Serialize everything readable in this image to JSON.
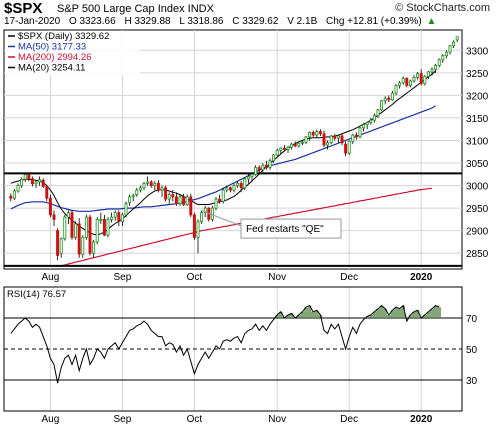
{
  "header": {
    "symbol": "$SPX",
    "name": "S&P 500 Large Cap Index INDX",
    "source": "© StockCharts.com",
    "date": "17-Jan-2020",
    "open": "O 3323.66",
    "high": "H 3329.88",
    "low": "L 3318.86",
    "close": "C 3329.62",
    "volume": "V 2.1B",
    "change": "Chg +12.81 (+0.39%)",
    "change_arrow": "▲"
  },
  "legend": [
    {
      "label": "$SPX (Daily) 3329.62",
      "color": "#000000"
    },
    {
      "label": "MA(50) 3177.33",
      "color": "#1a2fa0"
    },
    {
      "label": "MA(200) 2994.26",
      "color": "#cc1133"
    },
    {
      "label": "MA(20) 3254.11",
      "color": "#000000"
    }
  ],
  "annotation": "Fed restarts \"QE\"",
  "rsi_label": "RSI(14) 76.57",
  "chart_data": [
    {
      "type": "candlestick",
      "title": "$SPX (Daily)",
      "ylim": [
        2815,
        3345
      ],
      "yticks": [
        2850,
        2900,
        2950,
        3000,
        3050,
        3100,
        3150,
        3200,
        3250,
        3300
      ],
      "xticks": [
        {
          "label": "Aug",
          "i": 11
        },
        {
          "label": "Sep",
          "i": 31
        },
        {
          "label": "Oct",
          "i": 51
        },
        {
          "label": "Nov",
          "i": 74
        },
        {
          "label": "Dec",
          "i": 94
        },
        {
          "label": "2020",
          "i": 114
        }
      ],
      "hlines": [
        3027,
        2822
      ],
      "candles": [
        [
          2976,
          2983,
          2965,
          2972
        ],
        [
          2972,
          2992,
          2968,
          2988
        ],
        [
          2988,
          3005,
          2984,
          3000
        ],
        [
          3000,
          3018,
          2995,
          3014
        ],
        [
          3014,
          3028,
          3008,
          3024
        ],
        [
          3024,
          3027,
          3010,
          3015
        ],
        [
          3015,
          3020,
          2998,
          3004
        ],
        [
          3004,
          3012,
          2995,
          3008
        ],
        [
          3008,
          3020,
          3000,
          3013
        ],
        [
          3012,
          3016,
          2995,
          2998
        ],
        [
          2998,
          3000,
          2965,
          2972
        ],
        [
          2972,
          2980,
          2930,
          2935
        ],
        [
          2935,
          2945,
          2910,
          2925
        ],
        [
          2900,
          2905,
          2835,
          2845
        ],
        [
          2850,
          2885,
          2840,
          2882
        ],
        [
          2882,
          2935,
          2878,
          2930
        ],
        [
          2930,
          2945,
          2915,
          2940
        ],
        [
          2940,
          2945,
          2880,
          2885
        ],
        [
          2885,
          2920,
          2880,
          2915
        ],
        [
          2915,
          2928,
          2840,
          2848
        ],
        [
          2848,
          2890,
          2840,
          2885
        ],
        [
          2885,
          2935,
          2880,
          2930
        ],
        [
          2930,
          2935,
          2845,
          2850
        ],
        [
          2850,
          2880,
          2840,
          2875
        ],
        [
          2875,
          2930,
          2870,
          2925
        ],
        [
          2925,
          2940,
          2915,
          2925
        ],
        [
          2925,
          2935,
          2888,
          2890
        ],
        [
          2890,
          2930,
          2885,
          2925
        ],
        [
          2925,
          2940,
          2918,
          2930
        ],
        [
          2930,
          2945,
          2922,
          2940
        ],
        [
          2940,
          2945,
          2910,
          2920
        ],
        [
          2920,
          2940,
          2910,
          2935
        ],
        [
          2935,
          2965,
          2930,
          2960
        ],
        [
          2962,
          2980,
          2955,
          2975
        ],
        [
          2975,
          2982,
          2965,
          2978
        ],
        [
          2980,
          2995,
          2975,
          2990
        ],
        [
          2990,
          3000,
          2985,
          2995
        ],
        [
          2995,
          3008,
          2990,
          3005
        ],
        [
          3005,
          3020,
          3000,
          3008
        ],
        [
          3008,
          3012,
          2995,
          3000
        ],
        [
          3000,
          3010,
          2990,
          3005
        ],
        [
          3005,
          3012,
          2985,
          2990
        ],
        [
          2990,
          3000,
          2975,
          2995
        ],
        [
          2995,
          3000,
          2965,
          2970
        ],
        [
          2970,
          2985,
          2960,
          2980
        ],
        [
          2980,
          2990,
          2965,
          2975
        ],
        [
          2975,
          2985,
          2955,
          2960
        ],
        [
          2960,
          2980,
          2955,
          2975
        ],
        [
          2975,
          2982,
          2955,
          2958
        ],
        [
          2958,
          2980,
          2955,
          2975
        ],
        [
          2975,
          2982,
          2930,
          2935
        ],
        [
          2935,
          2940,
          2880,
          2885
        ],
        [
          2885,
          2925,
          2850,
          2920
        ],
        [
          2920,
          2945,
          2915,
          2940
        ],
        [
          2940,
          2955,
          2930,
          2950
        ],
        [
          2950,
          2952,
          2920,
          2925
        ],
        [
          2925,
          2955,
          2920,
          2950
        ],
        [
          2950,
          2975,
          2945,
          2970
        ],
        [
          2970,
          2980,
          2960,
          2965
        ],
        [
          2965,
          2995,
          2960,
          2990
        ],
        [
          2990,
          3000,
          2985,
          2995
        ],
        [
          2995,
          2998,
          2985,
          2990
        ],
        [
          2990,
          3005,
          2985,
          3000
        ],
        [
          3000,
          3010,
          2995,
          3005
        ],
        [
          3005,
          3010,
          2985,
          2995
        ],
        [
          2995,
          3018,
          2990,
          3015
        ],
        [
          3015,
          3025,
          3005,
          3020
        ],
        [
          3020,
          3028,
          3010,
          3025
        ],
        [
          3025,
          3045,
          3022,
          3040
        ],
        [
          3040,
          3045,
          3025,
          3035
        ],
        [
          3035,
          3050,
          3030,
          3045
        ],
        [
          3045,
          3055,
          3035,
          3040
        ],
        [
          3040,
          3060,
          3035,
          3055
        ],
        [
          3055,
          3070,
          3050,
          3068
        ],
        [
          3068,
          3082,
          3065,
          3078
        ],
        [
          3078,
          3085,
          3070,
          3083
        ],
        [
          3083,
          3090,
          3075,
          3080
        ],
        [
          3080,
          3088,
          3072,
          3085
        ],
        [
          3085,
          3095,
          3080,
          3092
        ],
        [
          3092,
          3098,
          3085,
          3088
        ],
        [
          3088,
          3096,
          3084,
          3094
        ],
        [
          3094,
          3100,
          3090,
          3096
        ],
        [
          3096,
          3110,
          3092,
          3108
        ],
        [
          3108,
          3120,
          3100,
          3118
        ],
        [
          3118,
          3122,
          3108,
          3112
        ],
        [
          3112,
          3124,
          3106,
          3120
        ],
        [
          3120,
          3125,
          3110,
          3115
        ],
        [
          3115,
          3122,
          3085,
          3090
        ],
        [
          3090,
          3100,
          3080,
          3095
        ],
        [
          3095,
          3112,
          3092,
          3110
        ],
        [
          3110,
          3115,
          3100,
          3105
        ],
        [
          3105,
          3112,
          3095,
          3110
        ],
        [
          3110,
          3115,
          3090,
          3095
        ],
        [
          3092,
          3098,
          3065,
          3072
        ],
        [
          3072,
          3100,
          3068,
          3098
        ],
        [
          3098,
          3115,
          3092,
          3112
        ],
        [
          3112,
          3118,
          3102,
          3108
        ],
        [
          3108,
          3130,
          3105,
          3128
        ],
        [
          3128,
          3138,
          3120,
          3135
        ],
        [
          3135,
          3142,
          3125,
          3140
        ],
        [
          3140,
          3150,
          3135,
          3145
        ],
        [
          3145,
          3160,
          3140,
          3155
        ],
        [
          3155,
          3170,
          3150,
          3168
        ],
        [
          3168,
          3190,
          3165,
          3188
        ],
        [
          3188,
          3198,
          3180,
          3194
        ],
        [
          3194,
          3200,
          3185,
          3190
        ],
        [
          3190,
          3210,
          3188,
          3205
        ],
        [
          3205,
          3225,
          3200,
          3222
        ],
        [
          3222,
          3232,
          3215,
          3228
        ],
        [
          3228,
          3242,
          3224,
          3238
        ],
        [
          3238,
          3240,
          3218,
          3222
        ],
        [
          3222,
          3235,
          3218,
          3232
        ],
        [
          3232,
          3245,
          3228,
          3240
        ],
        [
          3240,
          3252,
          3235,
          3248
        ],
        [
          3248,
          3258,
          3222,
          3226
        ],
        [
          3226,
          3245,
          3222,
          3242
        ],
        [
          3242,
          3255,
          3236,
          3252
        ],
        [
          3252,
          3262,
          3244,
          3258
        ],
        [
          3258,
          3270,
          3250,
          3266
        ],
        [
          3266,
          3282,
          3262,
          3279
        ],
        [
          3279,
          3292,
          3272,
          3288
        ],
        [
          3288,
          3300,
          3282,
          3296
        ],
        [
          3296,
          3312,
          3290,
          3310
        ],
        [
          3310,
          3322,
          3305,
          3318
        ],
        [
          3323,
          3330,
          3318,
          3330
        ]
      ],
      "ma20": [
        3005,
        3008,
        3010,
        3012,
        3014,
        3014,
        3013,
        3012,
        3010,
        3007,
        3000,
        2990,
        2978,
        2962,
        2948,
        2938,
        2930,
        2923,
        2917,
        2910,
        2905,
        2900,
        2895,
        2892,
        2891,
        2893,
        2897,
        2903,
        2910,
        2916,
        2921,
        2926,
        2933,
        2941,
        2948,
        2955,
        2962,
        2970,
        2977,
        2983,
        2988,
        2990,
        2991,
        2990,
        2988,
        2985,
        2983,
        2980,
        2976,
        2972,
        2967,
        2962,
        2958,
        2958,
        2958,
        2958,
        2960,
        2962,
        2964,
        2966,
        2968,
        2972,
        2976,
        2982,
        2990,
        2996,
        3003,
        3010,
        3018,
        3026,
        3034,
        3042,
        3049,
        3056,
        3063,
        3070,
        3077,
        3083,
        3088,
        3093,
        3097,
        3100,
        3103,
        3105,
        3106,
        3106,
        3106,
        3107,
        3108,
        3108,
        3110,
        3112,
        3115,
        3118,
        3121,
        3124,
        3128,
        3132,
        3136,
        3140,
        3145,
        3150,
        3156,
        3162,
        3168,
        3174,
        3180,
        3187,
        3193,
        3199,
        3205,
        3211,
        3217,
        3223,
        3229,
        3235,
        3241,
        3247,
        3254
      ],
      "ma50": [
        2948,
        2952,
        2956,
        2959,
        2962,
        2963,
        2964,
        2964,
        2964,
        2964,
        2962,
        2960,
        2957,
        2954,
        2951,
        2949,
        2947,
        2945,
        2944,
        2943,
        2943,
        2943,
        2943,
        2944,
        2945,
        2946,
        2947,
        2948,
        2948,
        2948,
        2948,
        2949,
        2950,
        2950,
        2950,
        2951,
        2952,
        2953,
        2953,
        2953,
        2954,
        2955,
        2956,
        2957,
        2958,
        2959,
        2960,
        2961,
        2963,
        2965,
        2967,
        2969,
        2971,
        2974,
        2977,
        2980,
        2983,
        2986,
        2990,
        2994,
        2998,
        3002,
        3006,
        3010,
        3014,
        3018,
        3022,
        3026,
        3030,
        3034,
        3038,
        3041,
        3044,
        3046,
        3048,
        3050,
        3052,
        3054,
        3056,
        3058,
        3061,
        3064,
        3067,
        3070,
        3073,
        3076,
        3079,
        3082,
        3085,
        3088,
        3091,
        3094,
        3097,
        3100,
        3103,
        3106,
        3109,
        3112,
        3115,
        3118,
        3121,
        3124,
        3127,
        3130,
        3133,
        3136,
        3139,
        3142,
        3145,
        3148,
        3151,
        3154,
        3157,
        3160,
        3163,
        3166,
        3169,
        3172,
        3177
      ],
      "ma200_start": 14,
      "ma200": [
        2822,
        2824,
        2826,
        2828,
        2830,
        2832,
        2834,
        2836,
        2838,
        2840,
        2842,
        2844,
        2846,
        2848,
        2850,
        2852,
        2854,
        2856,
        2858,
        2860,
        2862,
        2864,
        2866,
        2868,
        2870,
        2872,
        2874,
        2876,
        2878,
        2880,
        2882,
        2884,
        2886,
        2888,
        2890,
        2892,
        2894,
        2896,
        2898,
        2900,
        2901,
        2903,
        2904,
        2906,
        2907,
        2909,
        2910,
        2912,
        2913,
        2915,
        2916,
        2918,
        2919,
        2921,
        2922,
        2924,
        2925,
        2927,
        2928,
        2930,
        2931,
        2933,
        2934,
        2936,
        2937,
        2939,
        2940,
        2942,
        2943,
        2945,
        2946,
        2948,
        2949,
        2951,
        2952,
        2954,
        2955,
        2957,
        2958,
        2960,
        2961,
        2963,
        2964,
        2966,
        2967,
        2969,
        2970,
        2972,
        2973,
        2975,
        2976,
        2978,
        2979,
        2981,
        2982,
        2984,
        2985,
        2987,
        2988,
        2990,
        2991,
        2992,
        2993,
        2994
      ]
    },
    {
      "type": "line",
      "title": "RSI(14)",
      "ylim": [
        10,
        90
      ],
      "yticks": [
        30,
        50,
        70
      ],
      "hlines": [
        30,
        50,
        70
      ],
      "values": [
        60,
        63,
        66,
        68,
        70,
        68,
        64,
        66,
        64,
        58,
        52,
        44,
        40,
        28,
        38,
        44,
        46,
        40,
        46,
        36,
        44,
        50,
        40,
        44,
        50,
        48,
        44,
        50,
        52,
        54,
        50,
        54,
        58,
        62,
        63,
        65,
        66,
        68,
        66,
        62,
        60,
        58,
        58,
        52,
        54,
        53,
        48,
        52,
        46,
        50,
        42,
        34,
        40,
        44,
        48,
        44,
        48,
        52,
        50,
        55,
        56,
        55,
        57,
        58,
        54,
        60,
        62,
        63,
        66,
        62,
        65,
        62,
        66,
        69,
        72,
        74,
        70,
        72,
        73,
        70,
        72,
        74,
        77,
        78,
        74,
        75,
        72,
        62,
        60,
        66,
        63,
        66,
        58,
        50,
        58,
        64,
        60,
        66,
        69,
        71,
        72,
        74,
        76,
        78,
        76,
        72,
        75,
        77,
        76,
        78,
        68,
        72,
        74,
        75,
        70,
        72,
        74,
        76,
        78,
        77
      ]
    }
  ]
}
